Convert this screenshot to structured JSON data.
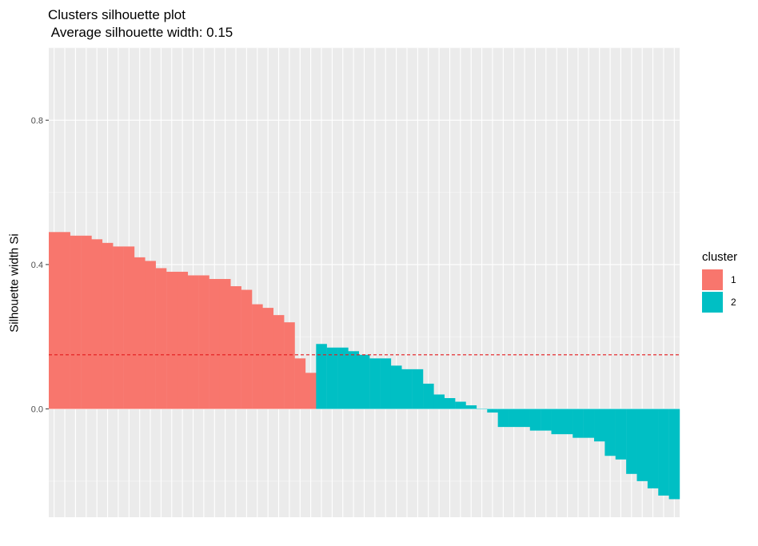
{
  "chart_data": {
    "type": "bar",
    "title": "Clusters silhouette plot",
    "subtitle": " Average silhouette width: 0.15",
    "xlabel": "",
    "ylabel": "Silhouette width Si",
    "ylim": [
      -0.3,
      1.0
    ],
    "yticks": [
      0.0,
      0.4,
      0.8
    ],
    "ytick_labels": [
      "0.0",
      "0.4",
      "0.8"
    ],
    "average_line": 0.15,
    "average_line_color": "#e41a1c",
    "panel_background": "#ebebeb",
    "grid": true,
    "legend": {
      "title": "cluster",
      "position": "right",
      "entries": [
        {
          "label": "1",
          "color": "#F8766D"
        },
        {
          "label": "2",
          "color": "#00BFC4"
        }
      ]
    },
    "series": [
      {
        "name": "1",
        "color": "#F8766D",
        "values": [
          0.49,
          0.49,
          0.48,
          0.48,
          0.47,
          0.46,
          0.45,
          0.45,
          0.42,
          0.41,
          0.39,
          0.38,
          0.38,
          0.37,
          0.37,
          0.36,
          0.36,
          0.34,
          0.33,
          0.29,
          0.28,
          0.26,
          0.24,
          0.14,
          0.1
        ]
      },
      {
        "name": "2",
        "color": "#00BFC4",
        "values": [
          0.18,
          0.17,
          0.17,
          0.16,
          0.15,
          0.14,
          0.14,
          0.12,
          0.11,
          0.11,
          0.07,
          0.04,
          0.03,
          0.02,
          0.01,
          0.0,
          -0.01,
          -0.05,
          -0.05,
          -0.05,
          -0.06,
          -0.06,
          -0.07,
          -0.07,
          -0.08,
          -0.08,
          -0.09,
          -0.13,
          -0.14,
          -0.18,
          -0.2,
          -0.22,
          -0.24,
          -0.25
        ]
      }
    ]
  }
}
